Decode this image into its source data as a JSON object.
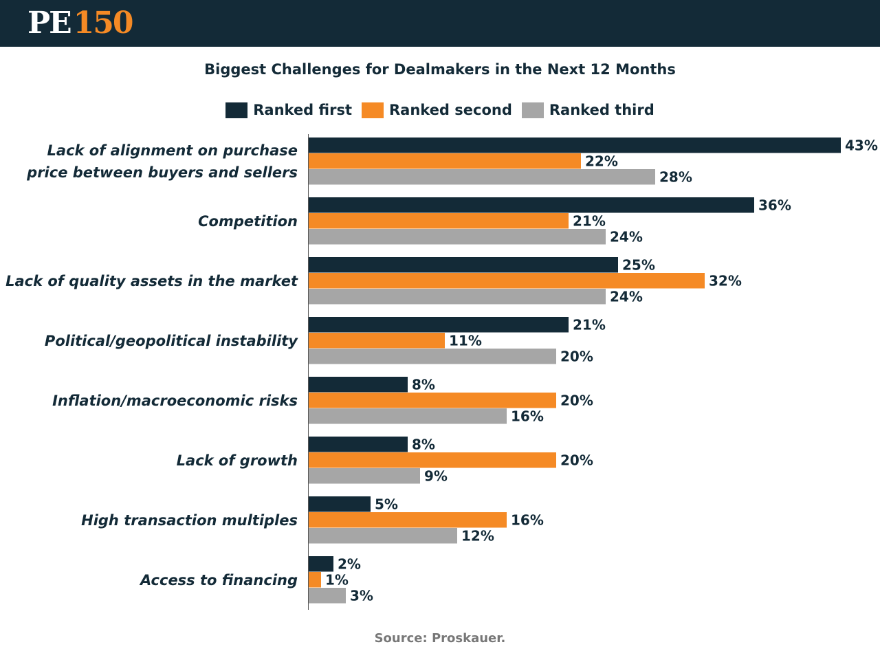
{
  "header": {
    "logo_text": "PE",
    "logo_number": "150"
  },
  "colors": {
    "first": "#132a37",
    "second": "#f58a25",
    "third": "#a6a6a6",
    "text": "#132a37"
  },
  "chart_data": {
    "type": "bar",
    "orientation": "horizontal",
    "title": "Biggest Challenges for Dealmakers in the Next 12 Months",
    "legend_position": "top-center",
    "categories": [
      [
        "Lack of alignment on purchase",
        "price between buyers and sellers"
      ],
      [
        "Competition"
      ],
      [
        "Lack of quality assets in the market"
      ],
      [
        "Political/geopolitical instability"
      ],
      [
        "Inflation/macroeconomic risks"
      ],
      [
        "Lack of growth"
      ],
      [
        "High transaction multiples"
      ],
      [
        "Access to financing"
      ]
    ],
    "series": [
      {
        "name": "Ranked first",
        "color_key": "first",
        "values": [
          43,
          36,
          25,
          21,
          8,
          8,
          5,
          2
        ]
      },
      {
        "name": "Ranked second",
        "color_key": "second",
        "values": [
          22,
          21,
          32,
          11,
          20,
          20,
          16,
          1
        ]
      },
      {
        "name": "Ranked third",
        "color_key": "third",
        "values": [
          28,
          24,
          24,
          20,
          16,
          9,
          12,
          3
        ]
      }
    ],
    "unit": "%",
    "xlim": [
      0,
      45
    ],
    "grid": false
  },
  "source": "Source: Proskauer."
}
